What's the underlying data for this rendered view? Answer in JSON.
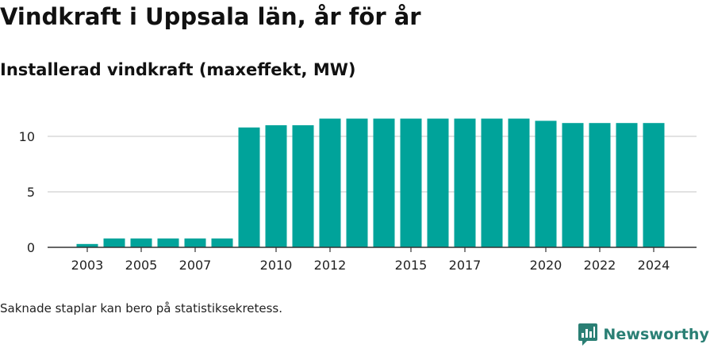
{
  "title": "Vindkraft i Uppsala län, år för år",
  "subtitle": "Installerad vindkraft (maxeffekt, MW)",
  "note": "Saknade staplar kan bero på statistiksekretess.",
  "brand": {
    "name": "Newsworthy",
    "icon": "newsworthy-chart-logo-icon",
    "color": "#2a7f74"
  },
  "colors": {
    "bar": "#00a39a",
    "grid": "#d9d9d9",
    "axis": "#333333"
  },
  "chart_data": {
    "type": "bar",
    "categories": [
      "2003",
      "2004",
      "2005",
      "2006",
      "2007",
      "2008",
      "2009",
      "2010",
      "2011",
      "2012",
      "2013",
      "2014",
      "2015",
      "2016",
      "2017",
      "2018",
      "2019",
      "2020",
      "2021",
      "2022",
      "2023",
      "2024"
    ],
    "values": [
      0.3,
      0.8,
      0.8,
      0.8,
      0.8,
      0.8,
      10.8,
      11.0,
      11.0,
      11.6,
      11.6,
      11.6,
      11.6,
      11.6,
      11.6,
      11.6,
      11.6,
      11.4,
      11.2,
      11.2,
      11.2,
      11.2
    ],
    "x_tick_labels": [
      "2003",
      "2005",
      "2007",
      "2010",
      "2012",
      "2015",
      "2017",
      "2020",
      "2022",
      "2024"
    ],
    "y_ticks": [
      0,
      5,
      10
    ],
    "ylim": [
      0,
      12.5
    ],
    "grid": true,
    "xlabel": "",
    "ylabel": ""
  }
}
